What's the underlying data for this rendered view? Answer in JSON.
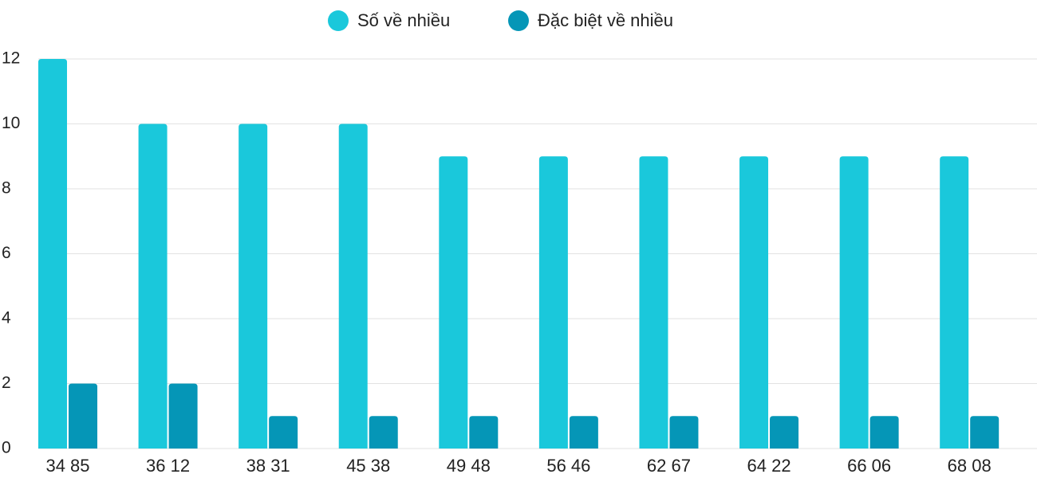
{
  "chart_data": {
    "type": "bar",
    "categories": [
      "34 85",
      "36 12",
      "38 31",
      "45 38",
      "49 48",
      "56 46",
      "62 67",
      "64 22",
      "66 06",
      "68 08"
    ],
    "series": [
      {
        "name": "Số về nhiều",
        "color": "#1ac8db",
        "values": [
          12,
          10,
          10,
          10,
          9,
          9,
          9,
          9,
          9,
          9
        ]
      },
      {
        "name": "Đặc biệt về nhiều",
        "color": "#0596b7",
        "values": [
          2,
          2,
          1,
          1,
          1,
          1,
          1,
          1,
          1,
          1
        ]
      }
    ],
    "ylim": [
      0,
      12
    ],
    "yticks": [
      0,
      2,
      4,
      6,
      8,
      10,
      12
    ],
    "grid": true,
    "legend": "top"
  }
}
